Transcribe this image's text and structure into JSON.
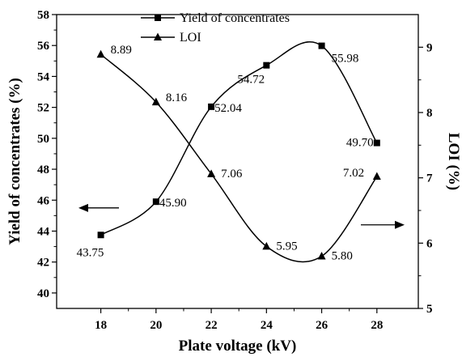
{
  "chart_data": {
    "type": "line",
    "title": "",
    "xlabel": "Plate voltage (kV)",
    "ylabel_left": "Yield of concentrates (%)",
    "ylabel_right": "LOI (%)",
    "x": [
      18,
      20,
      22,
      24,
      26,
      28
    ],
    "xlim": [
      16.4,
      29.5
    ],
    "x_ticks": [
      18,
      20,
      22,
      24,
      26,
      28
    ],
    "ylim_left": [
      39,
      58
    ],
    "y_ticks_left": [
      40,
      42,
      44,
      46,
      48,
      50,
      52,
      54,
      56,
      58
    ],
    "ylim_right": [
      5,
      9.5
    ],
    "y_ticks_right": [
      5,
      6,
      7,
      8,
      9
    ],
    "grid": false,
    "legend_position": "top-center",
    "series": [
      {
        "name": "Yield of concentrates",
        "axis": "left",
        "marker": "square",
        "values": [
          43.75,
          45.9,
          52.04,
          54.72,
          55.98,
          49.7
        ],
        "labels": [
          "43.75",
          "45.90",
          "52.04",
          "54.72",
          "55.98",
          "49.70"
        ]
      },
      {
        "name": "LOI",
        "axis": "right",
        "marker": "triangle",
        "values": [
          8.89,
          8.16,
          7.06,
          5.95,
          5.8,
          7.02
        ],
        "labels": [
          "8.89",
          "8.16",
          "7.06",
          "5.95",
          "5.80",
          "7.02"
        ]
      }
    ],
    "annotations": [
      {
        "type": "arrow",
        "direction": "left",
        "series": "Yield of concentrates"
      },
      {
        "type": "arrow",
        "direction": "right",
        "series": "LOI"
      }
    ],
    "colors": {
      "line": "#000000",
      "background": "#ffffff"
    }
  }
}
